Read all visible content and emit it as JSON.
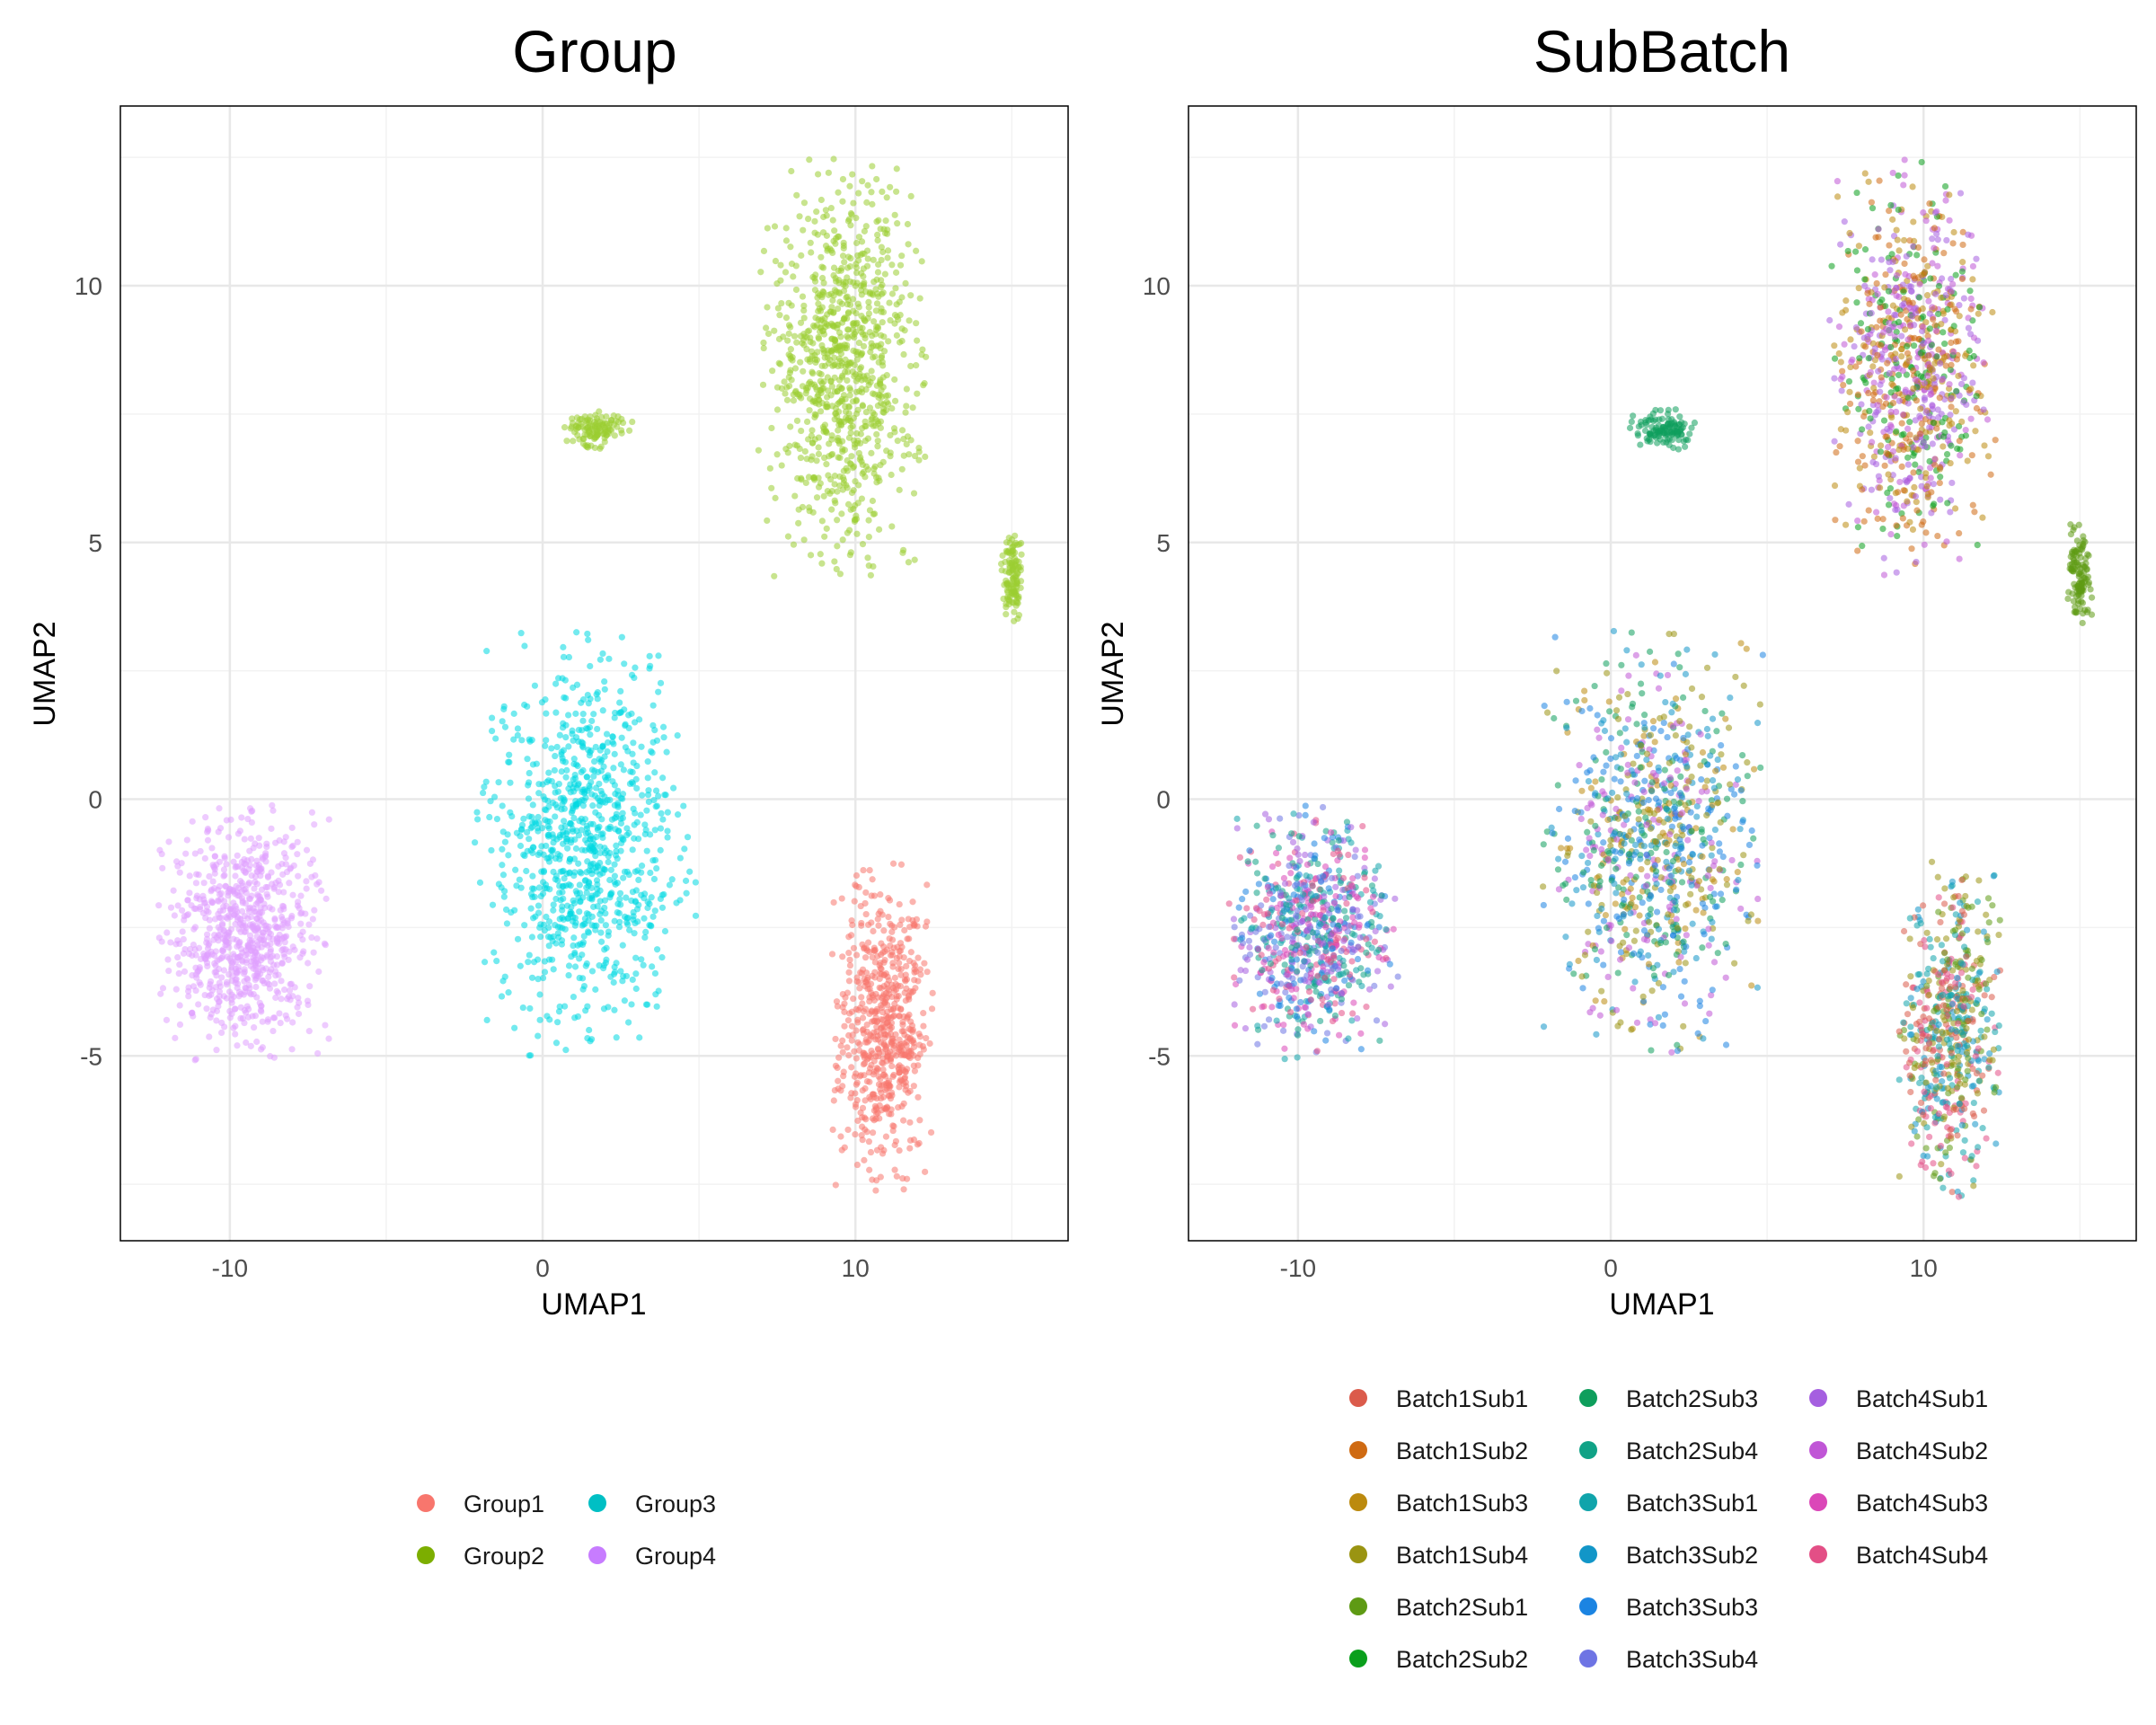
{
  "chart_data": [
    {
      "type": "scatter",
      "title": "Group",
      "xlabel": "UMAP1",
      "ylabel": "UMAP2",
      "xlim": [
        -13.5,
        16.8
      ],
      "ylim": [
        -8.6,
        13.5
      ],
      "xticks": [
        -10,
        0,
        10
      ],
      "xtick_labels": [
        "-10",
        "0",
        "10"
      ],
      "yticks": [
        -5,
        0,
        5,
        10
      ],
      "ytick_labels": [
        "-5",
        "0",
        "5",
        "10"
      ],
      "grid": true,
      "legend_position": "bottom",
      "legend": [
        {
          "label": "Group1",
          "color": "#F8766D"
        },
        {
          "label": "Group2",
          "color": "#7CAE00"
        },
        {
          "label": "Group3",
          "color": "#00BFC4"
        },
        {
          "label": "Group4",
          "color": "#C77CFF"
        }
      ],
      "clusters": [
        {
          "series": "Group1",
          "color": "#F8766D",
          "x": [
            9.2,
            12.5
          ],
          "y": [
            -7.8,
            -1.2
          ]
        },
        {
          "series": "Group2",
          "color": "#9ACD32",
          "x": [
            6.9,
            12.3
          ],
          "y": [
            4.3,
            12.5
          ]
        },
        {
          "series": "Group2",
          "color": "#9ACD32",
          "x": [
            0.6,
            2.9
          ],
          "y": [
            6.8,
            7.6
          ]
        },
        {
          "series": "Group2",
          "color": "#9ACD32",
          "x": [
            14.6,
            15.4
          ],
          "y": [
            3.3,
            5.4
          ]
        },
        {
          "series": "Group3",
          "color": "#00D9E1",
          "x": [
            -2.2,
            4.9
          ],
          "y": [
            -5.0,
            3.3
          ]
        },
        {
          "series": "Group4",
          "color": "#E0A0FF",
          "x": [
            -12.3,
            -6.8
          ],
          "y": [
            -5.1,
            -0.1
          ]
        }
      ]
    },
    {
      "type": "scatter",
      "title": "SubBatch",
      "xlabel": "UMAP1",
      "ylabel": "UMAP2",
      "xlim": [
        -13.5,
        16.8
      ],
      "ylim": [
        -8.6,
        13.5
      ],
      "xticks": [
        -10,
        0,
        10
      ],
      "xtick_labels": [
        "-10",
        "0",
        "10"
      ],
      "yticks": [
        -5,
        0,
        5,
        10
      ],
      "ytick_labels": [
        "-5",
        "0",
        "5",
        "10"
      ],
      "grid": true,
      "legend_position": "bottom",
      "legend": [
        {
          "label": "Batch1Sub1",
          "color": "#DB5B4B"
        },
        {
          "label": "Batch1Sub2",
          "color": "#CF6A12"
        },
        {
          "label": "Batch1Sub3",
          "color": "#BC8A0E"
        },
        {
          "label": "Batch1Sub4",
          "color": "#9A9412"
        },
        {
          "label": "Batch2Sub1",
          "color": "#5E9A14"
        },
        {
          "label": "Batch2Sub2",
          "color": "#0A9F1C"
        },
        {
          "label": "Batch2Sub3",
          "color": "#0E9E5C"
        },
        {
          "label": "Batch2Sub4",
          "color": "#10A286"
        },
        {
          "label": "Batch3Sub1",
          "color": "#10A4AB"
        },
        {
          "label": "Batch3Sub2",
          "color": "#1296C8"
        },
        {
          "label": "Batch3Sub3",
          "color": "#1B84E2"
        },
        {
          "label": "Batch3Sub4",
          "color": "#6E74E4"
        },
        {
          "label": "Batch4Sub1",
          "color": "#A55FE0"
        },
        {
          "label": "Batch4Sub2",
          "color": "#C056D6"
        },
        {
          "label": "Batch4Sub3",
          "color": "#DB47B8"
        },
        {
          "label": "Batch4Sub4",
          "color": "#E34F86"
        }
      ]
    }
  ]
}
